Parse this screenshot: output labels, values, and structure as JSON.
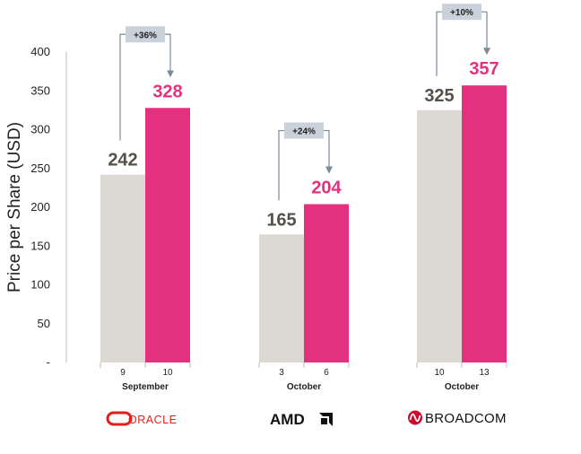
{
  "chart_data": {
    "type": "bar",
    "ylabel": "Price per Share (USD)",
    "ylim": [
      0,
      400
    ],
    "yticks": [
      "-",
      "50",
      "100",
      "150",
      "200",
      "250",
      "300",
      "350",
      "400"
    ],
    "ytick_values": [
      0,
      50,
      100,
      150,
      200,
      250,
      300,
      350,
      400
    ],
    "grid": false,
    "groups": [
      {
        "company": "ORACLE",
        "month": "September",
        "days": [
          "9",
          "10"
        ],
        "values": [
          242,
          328
        ],
        "value_labels": [
          "242",
          "328"
        ],
        "change": "+36%"
      },
      {
        "company": "AMD",
        "month": "October",
        "days": [
          "3",
          "6"
        ],
        "values": [
          165,
          204
        ],
        "value_labels": [
          "165",
          "204"
        ],
        "change": "+24%"
      },
      {
        "company": "BROADCOM",
        "month": "October",
        "days": [
          "10",
          "13"
        ],
        "values": [
          325,
          357
        ],
        "value_labels": [
          "325",
          "357"
        ],
        "change": "+10%"
      }
    ],
    "colors": {
      "before": "#dcd8d3",
      "after": "#e4317f",
      "before_label": "#555048",
      "after_label": "#e4317f",
      "change_box": "#c9d2da",
      "connector": "#7a8a99",
      "oracle_logo": "#e0201b",
      "broadcom_logo": "#cc092f",
      "amd_logo": "#111111"
    }
  }
}
